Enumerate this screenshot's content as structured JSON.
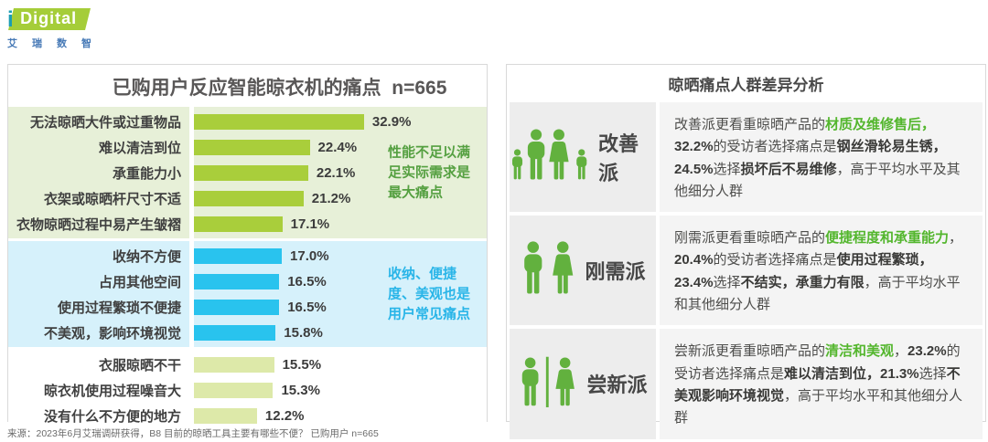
{
  "page": {
    "logo": {
      "i": "i",
      "brand": "Digital",
      "cn": "艾瑞数智"
    },
    "source": "来源：2023年6月艾瑞调研获得，B8 目前的晾晒工具主要有哪些不便？ 已购用户 n=665"
  },
  "chart_data": {
    "type": "bar",
    "orientation": "horizontal",
    "title": "已购用户反应智能晾衣机的痛点  n=665",
    "sample_size": "n=665",
    "value_suffix": "%",
    "xlim": [
      0,
      35
    ],
    "legend_position": "none",
    "grid": false,
    "groups": [
      {
        "name": "performance-pain-points",
        "bar_color": "#a9ce3b",
        "band_color": "#e7f0d8",
        "annotation": {
          "text": "性能不足以满足实际需求是最大痛点",
          "color": "#55a041"
        },
        "items": [
          {
            "label": "无法晾晒大件或过重物品",
            "value": 32.9,
            "display": "32.9%"
          },
          {
            "label": "难以清洁到位",
            "value": 22.4,
            "display": "22.4%"
          },
          {
            "label": "承重能力小",
            "value": 22.1,
            "display": "22.1%"
          },
          {
            "label": "衣架或晾晒杆尺寸不适",
            "value": 21.2,
            "display": "21.2%"
          },
          {
            "label": "衣物晾晒过程中易产生皱褶",
            "value": 17.1,
            "display": "17.1%"
          }
        ]
      },
      {
        "name": "storage-convenience-pain-points",
        "bar_color": "#29c3ee",
        "band_color": "#d6f1fb",
        "annotation": {
          "text": "收纳、便捷度、美观也是用户常见痛点",
          "color": "#29b5e8"
        },
        "items": [
          {
            "label": "收纳不方便",
            "value": 17.0,
            "display": "17.0%"
          },
          {
            "label": "占用其他空间",
            "value": 16.5,
            "display": "16.5%"
          },
          {
            "label": "使用过程繁琐不便捷",
            "value": 16.5,
            "display": "16.5%"
          },
          {
            "label": "不美观，影响环境视觉",
            "value": 15.8,
            "display": "15.8%"
          }
        ]
      },
      {
        "name": "other-pain-points",
        "bar_color": "#dde9a9",
        "band_color": "#ffffff",
        "annotation": null,
        "items": [
          {
            "label": "衣服晾晒不干",
            "value": 15.5,
            "display": "15.5%"
          },
          {
            "label": "晾衣机使用过程噪音大",
            "value": 15.3,
            "display": "15.3%"
          },
          {
            "label": "没有什么不方便的地方",
            "value": 12.2,
            "display": "12.2%"
          }
        ]
      }
    ]
  },
  "persona_panel": {
    "title": "晾晒痛点人群差异分析",
    "accent_green": "#53b62d",
    "icon_color": "#62b13e",
    "personas": [
      {
        "name": "改善派",
        "icon": "family-icon",
        "description": [
          {
            "t": "改善派更看重晾晒产品的",
            "s": "n"
          },
          {
            "t": "材质及维修售后，",
            "s": "g"
          },
          {
            "t": "32.2%",
            "s": "b"
          },
          {
            "t": "的受访者选择痛点是",
            "s": "n"
          },
          {
            "t": "钢丝滑轮易生锈，",
            "s": "b"
          },
          {
            "t": "24.5%",
            "s": "b"
          },
          {
            "t": "选择",
            "s": "n"
          },
          {
            "t": "损坏后不易维修",
            "s": "b"
          },
          {
            "t": "，高于平均水平及其他细分人群",
            "s": "n"
          }
        ]
      },
      {
        "name": "刚需派",
        "icon": "couple-icon",
        "description": [
          {
            "t": "刚需派更看重晾晒产品的",
            "s": "n"
          },
          {
            "t": "便捷程度和承重能力",
            "s": "g"
          },
          {
            "t": "，",
            "s": "n"
          },
          {
            "t": "20.4%",
            "s": "b"
          },
          {
            "t": "的受访者选择痛点是",
            "s": "n"
          },
          {
            "t": "使用过程繁琐，",
            "s": "b"
          },
          {
            "t": "23.4%",
            "s": "b"
          },
          {
            "t": "选择",
            "s": "n"
          },
          {
            "t": "不结实，承重力有限",
            "s": "b"
          },
          {
            "t": "，高于平均水平和其他细分人群",
            "s": "n"
          }
        ]
      },
      {
        "name": "尝新派",
        "icon": "male-female-divided-icon",
        "description": [
          {
            "t": "尝新派更看重晾晒产品的",
            "s": "n"
          },
          {
            "t": "清洁和美观",
            "s": "g"
          },
          {
            "t": "，",
            "s": "n"
          },
          {
            "t": "23.2%",
            "s": "b"
          },
          {
            "t": "的受访者选择痛点是",
            "s": "n"
          },
          {
            "t": "难以清洁到位，",
            "s": "b"
          },
          {
            "t": "21.3%",
            "s": "b"
          },
          {
            "t": "选择",
            "s": "n"
          },
          {
            "t": "不美观影响环境视觉",
            "s": "b"
          },
          {
            "t": "，高于平均水平和其他细分人群",
            "s": "n"
          }
        ]
      }
    ]
  }
}
